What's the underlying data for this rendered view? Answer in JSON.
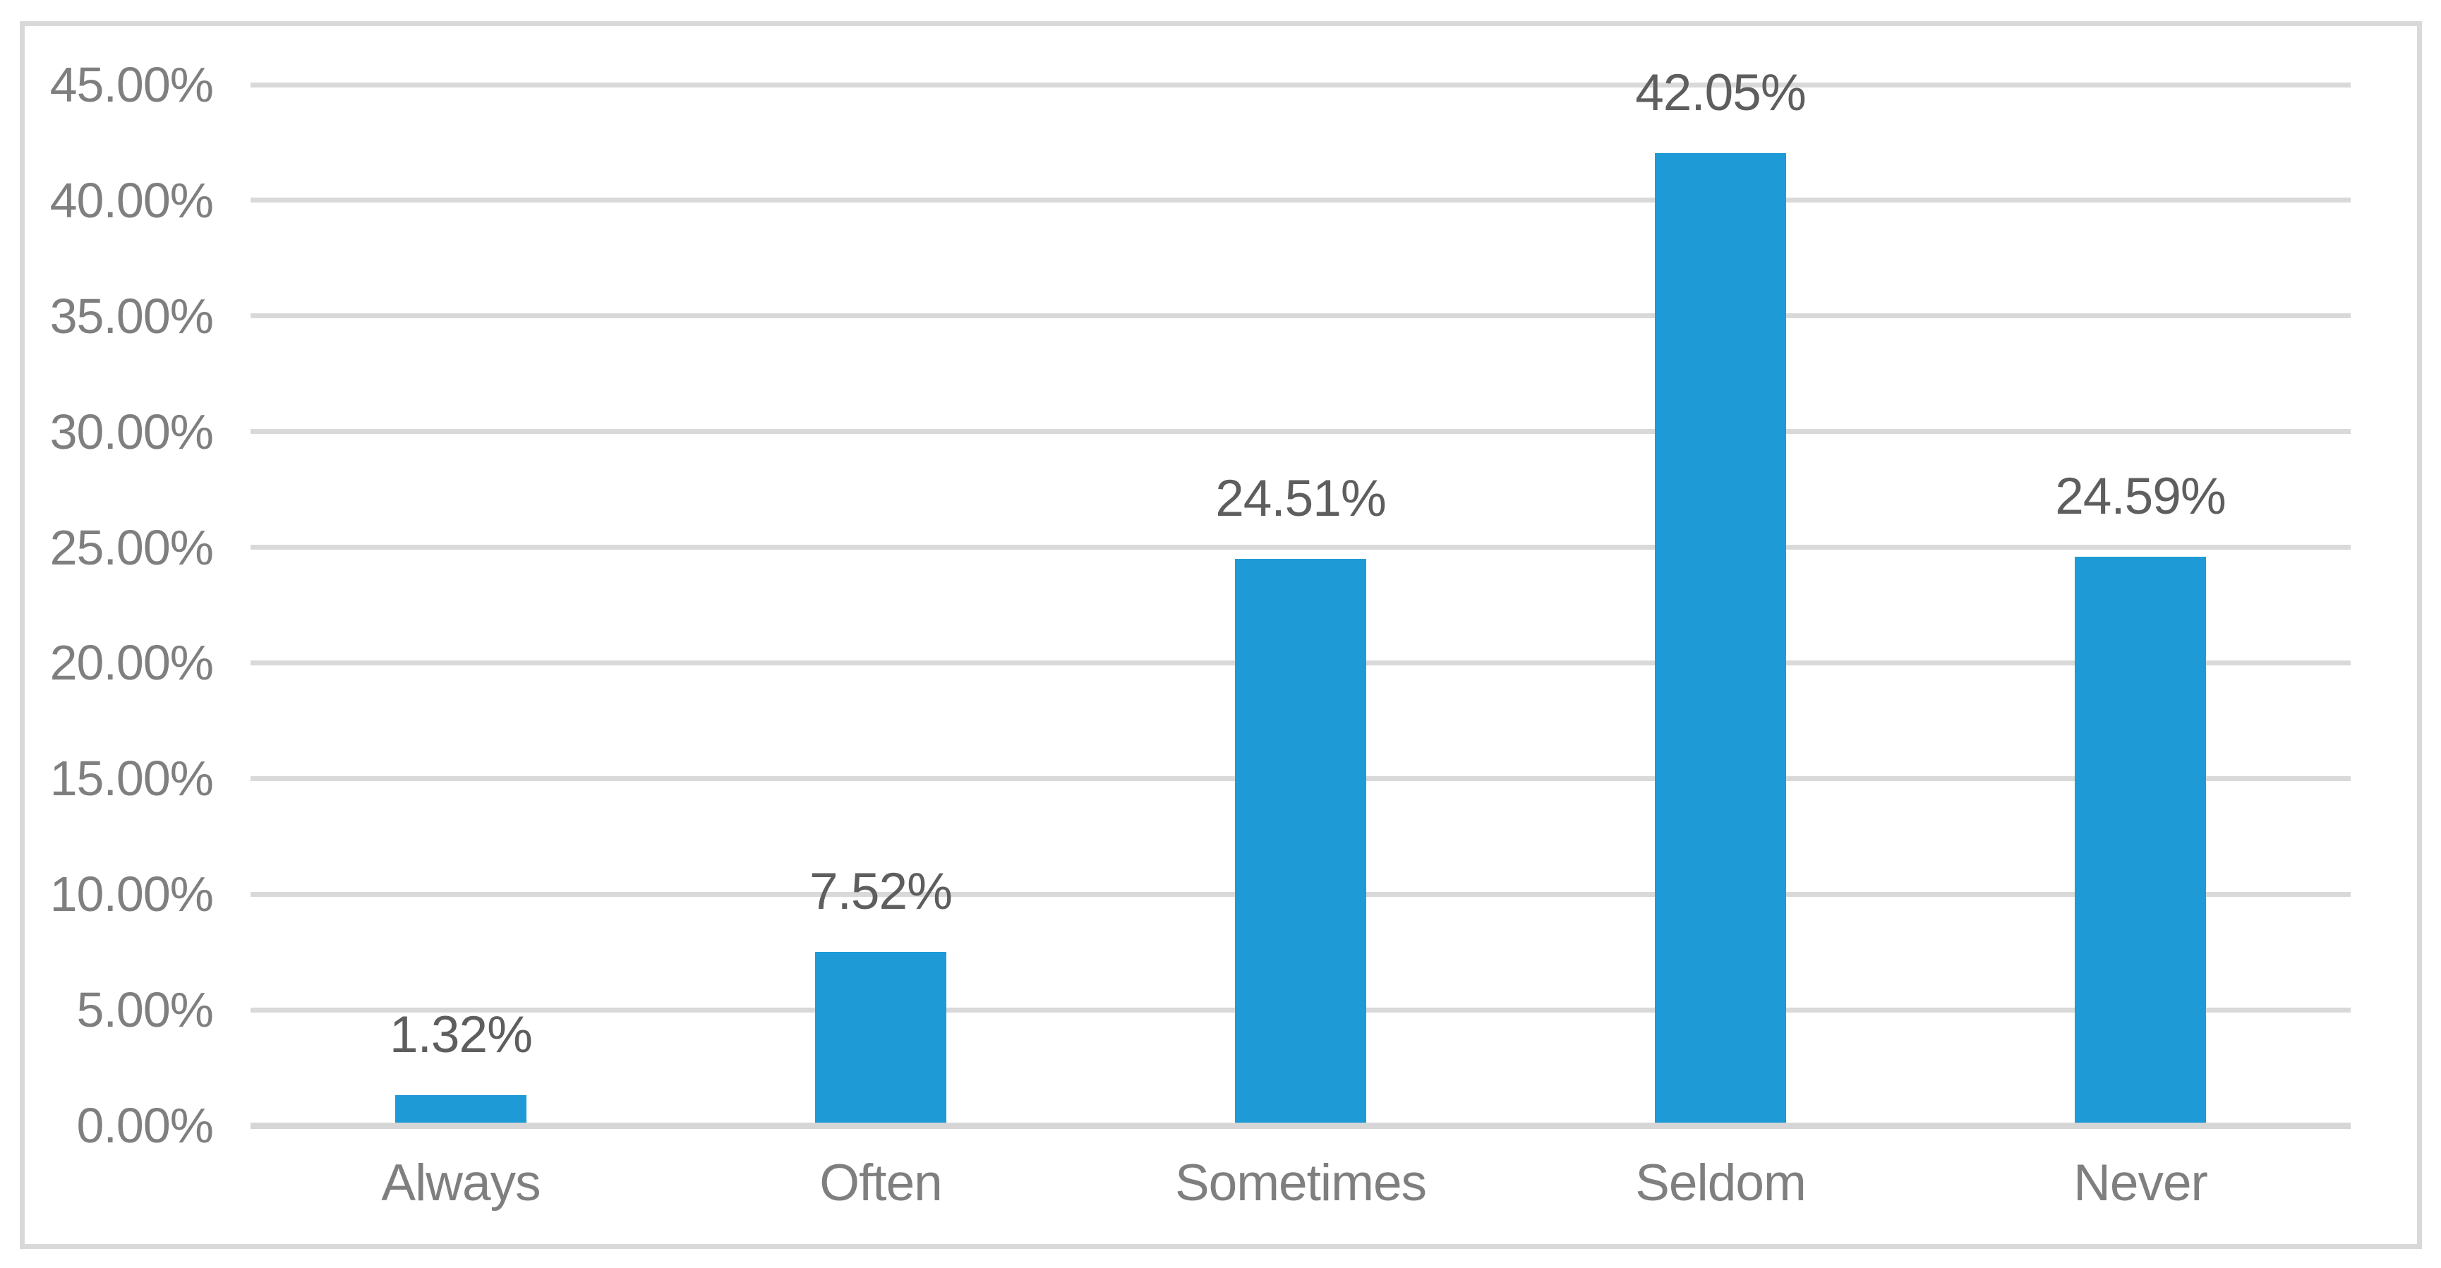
{
  "chart_data": {
    "type": "bar",
    "categories": [
      "Always",
      "Often",
      "Sometimes",
      "Seldom",
      "Never"
    ],
    "values": [
      1.32,
      7.52,
      24.51,
      42.05,
      24.59
    ],
    "data_labels": [
      "1.32%",
      "7.52%",
      "24.51%",
      "42.05%",
      "24.59%"
    ],
    "y_ticks": [
      {
        "label": "0.00%",
        "value": 0
      },
      {
        "label": "5.00%",
        "value": 5
      },
      {
        "label": "10.00%",
        "value": 10
      },
      {
        "label": "15.00%",
        "value": 15
      },
      {
        "label": "20.00%",
        "value": 20
      },
      {
        "label": "25.00%",
        "value": 25
      },
      {
        "label": "30.00%",
        "value": 30
      },
      {
        "label": "35.00%",
        "value": 35
      },
      {
        "label": "40.00%",
        "value": 40
      },
      {
        "label": "45.00%",
        "value": 45
      }
    ],
    "ylim": [
      0,
      45
    ],
    "grid": true,
    "legend": "none",
    "colors": {
      "bar": "#1e9bd7",
      "gridline": "#d9d9d9",
      "axis_line": "#d6d6d6",
      "frame_border": "#d9d9d9",
      "tick_label": "#7f7f7f",
      "category_label": "#7f7f7f",
      "data_label": "#5e5e5e",
      "background": "#ffffff"
    }
  }
}
